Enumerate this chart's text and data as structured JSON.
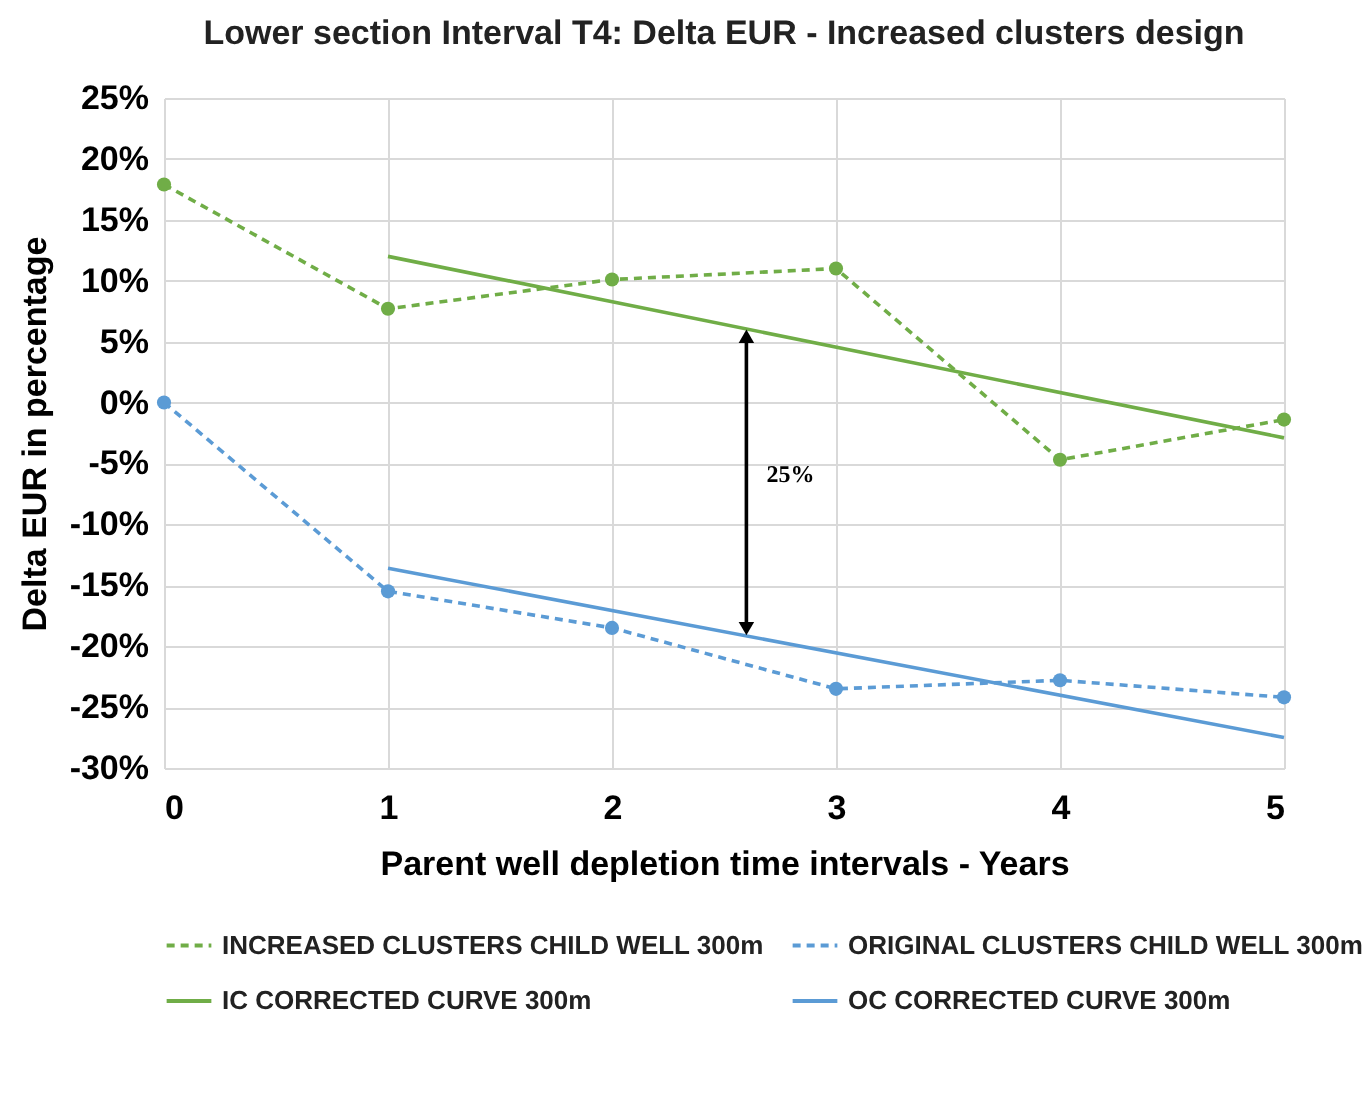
{
  "chart_data": {
    "type": "line",
    "title": "Lower section Interval T4: Delta EUR - Increased clusters design",
    "xlabel": "Parent well depletion time intervals - Years",
    "ylabel": "Delta EUR in percentage",
    "series": [
      {
        "name": "INCREASED CLUSTERS CHILD WELL 300m",
        "color": "#70ad47",
        "line_style": "dashed",
        "marker": "circle",
        "x": [
          0,
          1,
          2,
          3,
          4,
          5
        ],
        "values": [
          17.9,
          7.7,
          10.1,
          11.0,
          -4.7,
          -1.4
        ]
      },
      {
        "name": "ORIGINAL CLUSTERS CHILD WELL 300m",
        "color": "#5b9bd5",
        "line_style": "dashed",
        "marker": "circle",
        "x": [
          0,
          1,
          2,
          3,
          4,
          5
        ],
        "values": [
          0,
          -15.5,
          -18.5,
          -23.5,
          -22.8,
          -24.2
        ]
      },
      {
        "name": "IC CORRECTED CURVE 300m",
        "color": "#70ad47",
        "line_style": "solid",
        "marker": "none",
        "x": [
          1,
          5
        ],
        "values": [
          12.0,
          -2.9
        ]
      },
      {
        "name": "OC CORRECTED CURVE 300m",
        "color": "#5b9bd5",
        "line_style": "solid",
        "marker": "none",
        "x": [
          1,
          5
        ],
        "values": [
          -13.6,
          -27.5
        ]
      }
    ],
    "annotations": [
      "25%"
    ],
    "xlim": [
      0,
      5
    ],
    "xticks": [
      0,
      1,
      2,
      3,
      4,
      5
    ],
    "ylim": [
      -30,
      25
    ],
    "yticks": [
      {
        "value": -30,
        "label": "-30%"
      },
      {
        "value": -25,
        "label": "-25%"
      },
      {
        "value": -20,
        "label": "-20%"
      },
      {
        "value": -15,
        "label": "-15%"
      },
      {
        "value": -10,
        "label": "-10%"
      },
      {
        "value": -5,
        "label": "-5%"
      },
      {
        "value": 0,
        "label": "0%"
      },
      {
        "value": 5,
        "label": "5%"
      },
      {
        "value": 10,
        "label": "10%"
      },
      {
        "value": 15,
        "label": "15%"
      },
      {
        "value": 20,
        "label": "20%"
      },
      {
        "value": 25,
        "label": "25%"
      }
    ],
    "grid": true,
    "legend": "bottom"
  }
}
